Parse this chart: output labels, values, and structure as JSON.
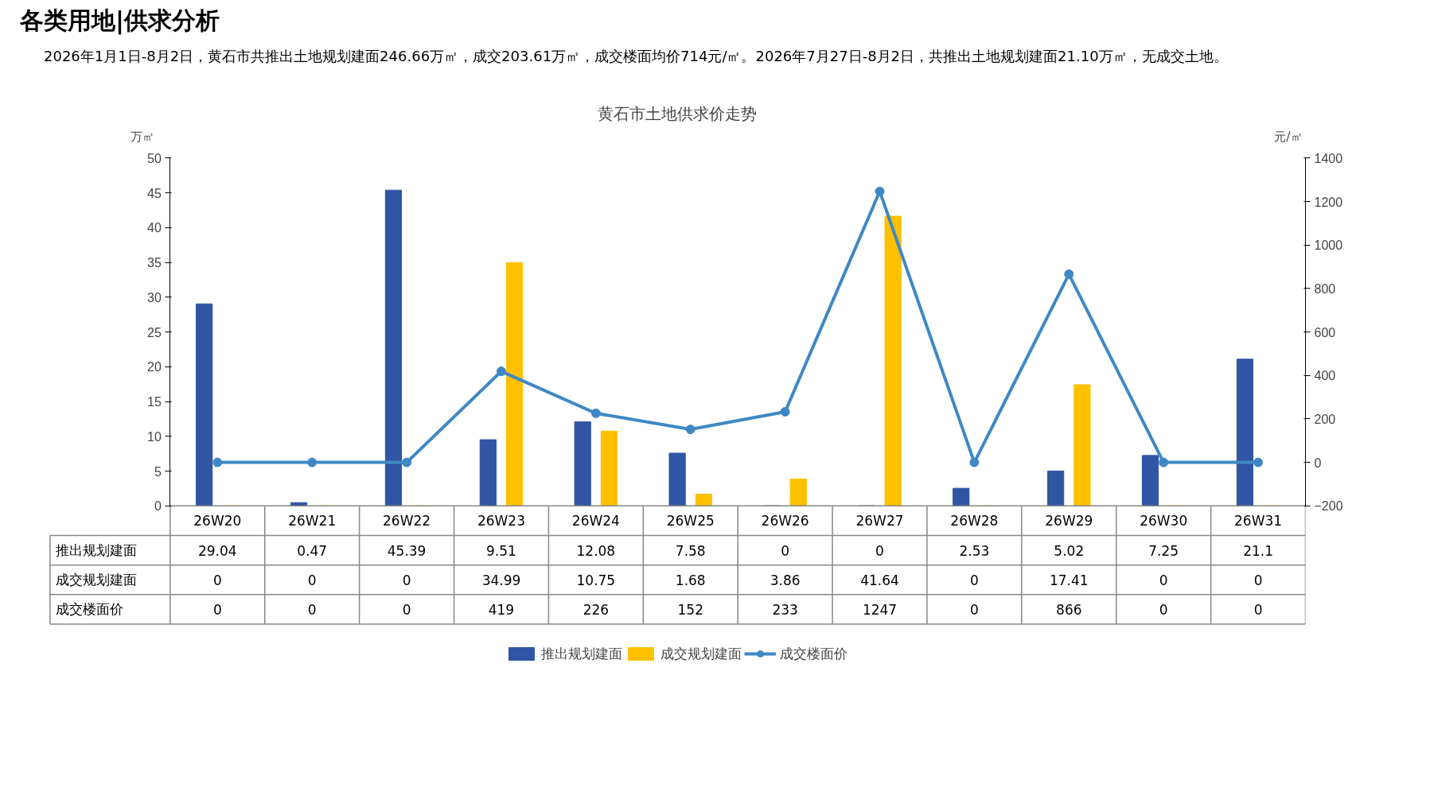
{
  "chart_data": {
    "type": "bar",
    "title": "黄石市土地供求价走势",
    "annotations": [
      "各类用地|供求分析",
      "2026年1月1日-8月2日，黄石市共推出土地规划建面246.66万㎡，成交203.61万㎡，成交楼面均价714元/㎡。2026年7月27日-8月2日，共推出土地规划建面21.10万㎡，无成交土地。"
    ],
    "ylabel": "万㎡",
    "y2label": "元/㎡",
    "categories": [
      "26W20",
      "26W21",
      "26W22",
      "26W23",
      "26W24",
      "26W25",
      "26W26",
      "26W27",
      "26W28",
      "26W29",
      "26W30",
      "26W31"
    ],
    "series": [
      {
        "name": "推出规划建面",
        "color": "#2f55a4",
        "values": [
          29.04,
          0.47,
          45.39,
          9.51,
          12.08,
          7.58,
          0,
          0,
          2.53,
          5.02,
          7.25,
          21.1
        ]
      },
      {
        "name": "成交规划建面",
        "color": "#ffc000",
        "values": [
          0,
          0,
          0,
          34.99,
          10.75,
          1.68,
          3.86,
          41.64,
          0,
          17.41,
          0,
          0
        ]
      },
      {
        "name": "成交楼面价",
        "type": "line",
        "axis": "y2",
        "color": "#3f88c5",
        "values": [
          0,
          0,
          0,
          419,
          226,
          152,
          233,
          1247,
          0,
          866,
          0,
          0
        ]
      }
    ],
    "ylim": [
      0,
      50
    ],
    "yticks": [
      0,
      5,
      10,
      15,
      20,
      25,
      30,
      35,
      40,
      45,
      50
    ],
    "y2lim": [
      -200,
      1400
    ],
    "y2ticks": [
      -200,
      0,
      200,
      400,
      600,
      800,
      1000,
      1200,
      1400
    ],
    "data_labels": true,
    "grid": false,
    "legend": "bottom",
    "marker": "circle",
    "line_style": "solid"
  }
}
